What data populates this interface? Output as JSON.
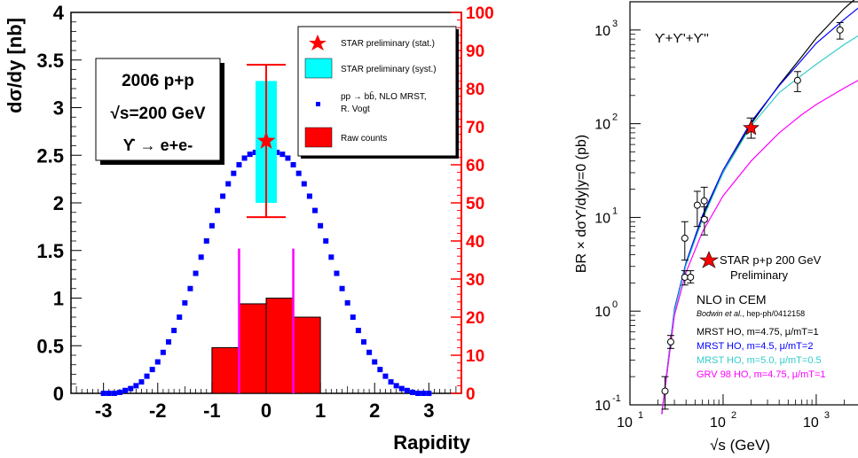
{
  "chart_data": [
    {
      "type": "bar",
      "xlabel": "Rapidity",
      "ylabel": "dσ/dy [nb]",
      "x_range": [
        -3.6,
        3.6
      ],
      "ylim": [
        0,
        4
      ],
      "ylim_right": [
        0,
        100
      ],
      "x_ticks": [
        "-3",
        "-2",
        "-1",
        "0",
        "1",
        "2",
        "3"
      ],
      "y_ticks": [
        "0",
        "0.5",
        "1",
        "1.5",
        "2",
        "2.5",
        "3",
        "3.5",
        "4"
      ],
      "y_right_ticks": [
        "0",
        "10",
        "20",
        "30",
        "40",
        "50",
        "60",
        "70",
        "80",
        "90",
        "100"
      ],
      "info_box": {
        "line1": "2006 p+p",
        "line2": "√s=200 GeV",
        "line3": "ϒ → e+e-"
      },
      "legend": {
        "position": "top-right",
        "entries": [
          {
            "label": "STAR preliminary (stat.)",
            "symbol": "star",
            "color": "#ff0000"
          },
          {
            "label": "STAR preliminary (syst.)",
            "symbol": "box",
            "color": "#00ffff"
          },
          {
            "label": "pp → bb̄, NLO MRST,",
            "label2": "R. Vogt",
            "symbol": "square",
            "color": "#0000ff"
          },
          {
            "label": "Raw counts",
            "symbol": "box",
            "color": "#ff0000"
          }
        ]
      },
      "star_point": {
        "x": 0.0,
        "y": 2.65,
        "stat_low": 1.85,
        "stat_high": 3.45,
        "syst_low": 2.0,
        "syst_high": 3.28
      },
      "raw_counts": {
        "bins": [
          [
            -1.0,
            -0.5
          ],
          [
            -0.5,
            0.0
          ],
          [
            0.0,
            0.5
          ],
          [
            0.5,
            1.0
          ]
        ],
        "counts": [
          12,
          23.5,
          25,
          20
        ]
      },
      "acceptance_lines": {
        "x": [
          -0.5,
          0.5
        ],
        "ymax_counts": 38
      },
      "theory": {
        "name": "pp → bb̄, NLO MRST, R. Vogt",
        "x": [
          -3.0,
          -2.9,
          -2.8,
          -2.7,
          -2.6,
          -2.5,
          -2.4,
          -2.3,
          -2.2,
          -2.1,
          -2.0,
          -1.9,
          -1.8,
          -1.7,
          -1.6,
          -1.5,
          -1.4,
          -1.3,
          -1.2,
          -1.1,
          -1.0,
          -0.9,
          -0.8,
          -0.7,
          -0.6,
          -0.5,
          -0.4,
          -0.3,
          -0.2,
          -0.1,
          0.0,
          0.1,
          0.2,
          0.3,
          0.4,
          0.5,
          0.6,
          0.7,
          0.8,
          0.9,
          1.0,
          1.1,
          1.2,
          1.3,
          1.4,
          1.5,
          1.6,
          1.7,
          1.8,
          1.9,
          2.0,
          2.1,
          2.2,
          2.3,
          2.4,
          2.5,
          2.6,
          2.7,
          2.8,
          2.9,
          3.0
        ],
        "y": [
          0.0,
          0.0,
          0.0,
          0.01,
          0.03,
          0.05,
          0.08,
          0.12,
          0.18,
          0.25,
          0.33,
          0.43,
          0.54,
          0.66,
          0.8,
          0.95,
          1.1,
          1.26,
          1.43,
          1.6,
          1.76,
          1.92,
          2.07,
          2.2,
          2.31,
          2.4,
          2.47,
          2.51,
          2.53,
          2.53,
          2.52,
          2.53,
          2.53,
          2.51,
          2.47,
          2.4,
          2.31,
          2.2,
          2.07,
          1.92,
          1.76,
          1.6,
          1.43,
          1.26,
          1.1,
          0.95,
          0.8,
          0.66,
          0.54,
          0.43,
          0.33,
          0.25,
          0.18,
          0.12,
          0.08,
          0.05,
          0.03,
          0.01,
          0.0,
          0.0,
          0.0
        ]
      }
    },
    {
      "type": "line",
      "xlabel": "√s (GeV)",
      "ylabel": "BR × dσϒ/dy|y=0 (pb)",
      "x_scale": "log",
      "y_scale": "log",
      "xlim": [
        10,
        3000
      ],
      "ylim": [
        0.1,
        2000
      ],
      "x_ticks": [
        "10",
        "10",
        "10"
      ],
      "x_tick_exponents": [
        "1",
        "2",
        "3"
      ],
      "y_ticks": [
        "10",
        "10",
        "10",
        "10",
        "10"
      ],
      "y_tick_exponents": [
        "-1",
        "0",
        "1",
        "2",
        "3"
      ],
      "title_in_plot": "ϒ+ϒ'+ϒ''",
      "star_point": {
        "x": 200,
        "y": 90,
        "err_low": 70,
        "err_high": 115,
        "label1": "STAR p+p 200 GeV",
        "label2": "Preliminary"
      },
      "data_points": {
        "x": [
          23.8,
          27.4,
          38.8,
          38.8,
          44.7,
          52.8,
          62.7,
          63.0,
          630,
          1800
        ],
        "y": [
          0.14,
          0.47,
          2.3,
          6.0,
          2.3,
          13.5,
          15.0,
          9.5,
          290,
          1000
        ],
        "err_low": [
          0.09,
          0.4,
          1.9,
          3.5,
          2.0,
          8.0,
          10.0,
          6.5,
          220,
          800
        ],
        "err_high": [
          0.2,
          0.55,
          2.7,
          9.0,
          2.7,
          19.0,
          21.0,
          13.0,
          360,
          1200
        ]
      },
      "theory_header": {
        "title": "NLO in CEM",
        "ref_italic": "Bodwin et al.",
        "ref_rest": ", hep-ph/0412158"
      },
      "series": [
        {
          "name": "MRST HO, m=4.75, μ/mT=1",
          "color": "#000000",
          "x": [
            22,
            30,
            40,
            60,
            100,
            200,
            400,
            700,
            1000,
            2000,
            3000
          ],
          "y": [
            0.08,
            1.0,
            3.2,
            10,
            30,
            100,
            260,
            520,
            820,
            1700,
            2400
          ]
        },
        {
          "name": "MRST HO, m=4.5, μ/mT=2",
          "color": "#0000ff",
          "x": [
            22,
            30,
            40,
            60,
            100,
            200,
            400,
            700,
            1000,
            2000,
            3000
          ],
          "y": [
            0.08,
            1.05,
            3.3,
            10.5,
            32,
            105,
            255,
            480,
            720,
            1300,
            1800
          ]
        },
        {
          "name": "MRST HO, m=5.0, μ/mT=0.5",
          "color": "#33cccc",
          "x": [
            22,
            30,
            40,
            60,
            100,
            200,
            400,
            700,
            1000,
            2000,
            3000
          ],
          "y": [
            0.08,
            1.0,
            3.1,
            9.5,
            30,
            95,
            215,
            330,
            430,
            700,
            900
          ]
        },
        {
          "name": "GRV 98 HO, m=4.75, μ/mT=1",
          "color": "#ff00ff",
          "x": [
            22,
            30,
            40,
            60,
            100,
            200,
            400,
            700,
            1000,
            2000,
            3000
          ],
          "y": [
            0.08,
            0.9,
            2.6,
            7.0,
            17,
            40,
            80,
            125,
            160,
            240,
            300
          ]
        }
      ]
    }
  ]
}
